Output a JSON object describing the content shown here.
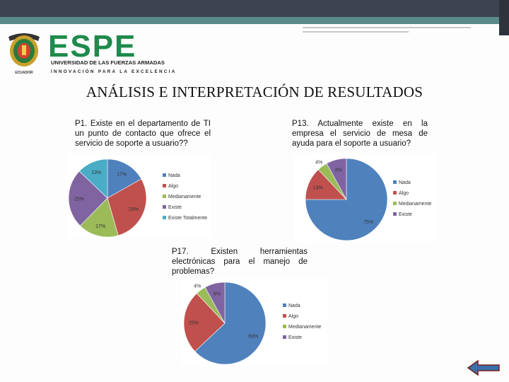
{
  "header": {
    "institution": "UNIVERSIDAD DE LAS FUERZAS ARMADAS",
    "logo_text": "ESPE",
    "motto": "INNOVACIÓN PARA LA EXCELENCIA",
    "crest_caption": "ECUADOR"
  },
  "page": {
    "title": "ANÁLISIS E INTERPRETACIÓN DE RESULTADOS"
  },
  "colors": {
    "nada": "#4f81bd",
    "algo": "#c0504d",
    "medianamente": "#9bbb59",
    "existe": "#8064a2",
    "existe_totalmente": "#4bacc6",
    "brand_green": "#1e8a4c"
  },
  "questions": [
    {
      "text": "P1. Existe en el departamento de TI un punto de contacto que ofrece el servicio de soporte a usuario??"
    },
    {
      "text": "P13. Actualmente existe en la empresa el servicio de mesa de ayuda para el soporte a usuario?"
    },
    {
      "text": "P17. Existen herramientas electrónicas para el manejo de problemas?"
    }
  ],
  "chart_data": [
    {
      "type": "pie",
      "categories": [
        "Nada",
        "Algo",
        "Medianamente",
        "Existe",
        "Existe Totalmente"
      ],
      "values": [
        17,
        29,
        17,
        25,
        13
      ],
      "labels": [
        "17%",
        "29%",
        "17%",
        "25%",
        "13%"
      ],
      "colors": [
        "#4f81bd",
        "#c0504d",
        "#9bbb59",
        "#8064a2",
        "#4bacc6"
      ],
      "legend": "right"
    },
    {
      "type": "pie",
      "categories": [
        "Nada",
        "Algo",
        "Medianamente",
        "Existe"
      ],
      "values": [
        75,
        13,
        4,
        8
      ],
      "labels": [
        "75%",
        "13%",
        "4%",
        "8%"
      ],
      "colors": [
        "#4f81bd",
        "#c0504d",
        "#9bbb59",
        "#8064a2"
      ],
      "legend": "right"
    },
    {
      "type": "pie",
      "categories": [
        "Nada",
        "Algo",
        "Medianamente",
        "Existe"
      ],
      "values": [
        63,
        25,
        4,
        8
      ],
      "labels": [
        "63%",
        "25%",
        "4%",
        "8%"
      ],
      "colors": [
        "#4f81bd",
        "#c0504d",
        "#9bbb59",
        "#8064a2"
      ],
      "legend": "right"
    }
  ],
  "nav": {
    "back_icon": "left-arrow-icon"
  }
}
